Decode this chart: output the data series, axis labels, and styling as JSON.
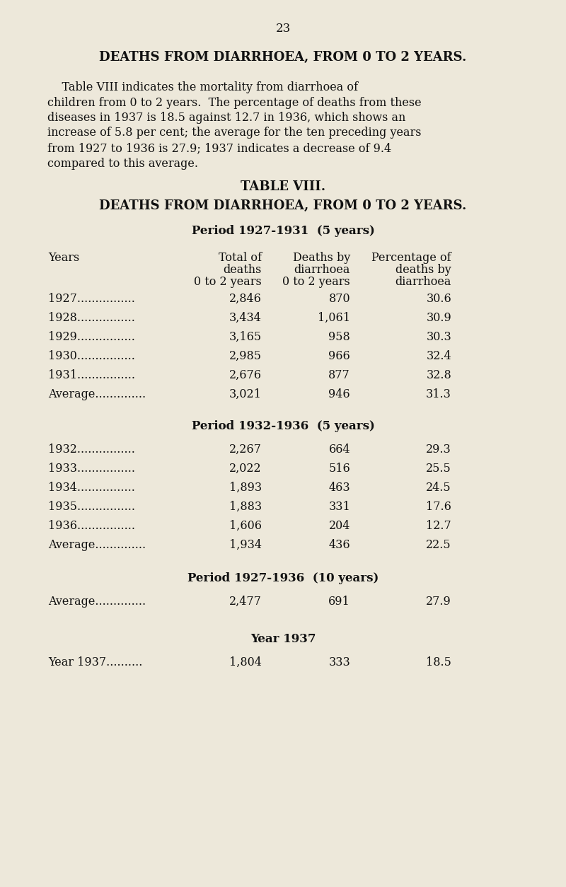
{
  "page_number": "23",
  "main_title": "DEATHS FROM DIARRHOEA, FROM 0 TO 2 YEARS.",
  "body_lines": [
    "    Table VIII indicates the mortality from diarrhoea of",
    "children from 0 to 2 years.  The percentage of deaths from these",
    "diseases in 1937 is 18.5 against 12.7 in 1936, which shows an",
    "increase of 5.8 per cent; the average for the ten preceding years",
    "from 1927 to 1936 is 27.9; 1937 indicates a decrease of 9.4",
    "compared to this average."
  ],
  "table_title": "TABLE VIII.",
  "table_subtitle": "DEATHS FROM DIARRHOEA, FROM 0 TO 2 YEARS.",
  "period1_header": "Period 1927-1931  (5 years)",
  "period2_header": "Period 1932-1936  (5 years)",
  "period3_header": "Period 1927-1936  (10 years)",
  "period4_header": "Year 1937",
  "period1_rows": [
    [
      "1927................",
      "2,846",
      "870",
      "30.6"
    ],
    [
      "1928................",
      "3,434",
      "1,061",
      "30.9"
    ],
    [
      "1929................",
      "3,165",
      "958",
      "30.3"
    ],
    [
      "1930................",
      "2,985",
      "966",
      "32.4"
    ],
    [
      "1931................",
      "2,676",
      "877",
      "32.8"
    ],
    [
      "Average..............",
      "3,021",
      "946",
      "31.3"
    ]
  ],
  "period2_rows": [
    [
      "1932................",
      "2,267",
      "664",
      "29.3"
    ],
    [
      "1933................",
      "2,022",
      "516",
      "25.5"
    ],
    [
      "1934................",
      "1,893",
      "463",
      "24.5"
    ],
    [
      "1935................",
      "1,883",
      "331",
      "17.6"
    ],
    [
      "1936................",
      "1,606",
      "204",
      "12.7"
    ],
    [
      "Average..............",
      "1,934",
      "436",
      "22.5"
    ]
  ],
  "period3_rows": [
    [
      "Average..............",
      "2,477",
      "691",
      "27.9"
    ]
  ],
  "period4_rows": [
    [
      "Year 1937..........",
      "1,804",
      "333",
      "18.5"
    ]
  ],
  "bg_color": "#ede8da",
  "text_color": "#111111",
  "fig_width": 8.0,
  "fig_height": 12.54,
  "dpi": 100
}
